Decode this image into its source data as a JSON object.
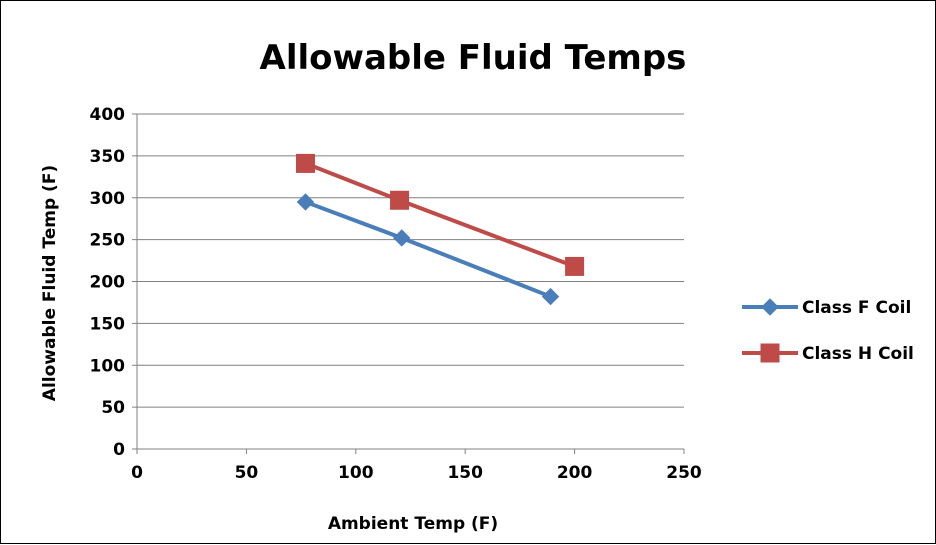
{
  "chart_data": {
    "type": "line",
    "title": "Allowable Fluid Temps",
    "xlabel": "Ambient Temp (F)",
    "ylabel": "Allowable Fluid Temp (F)",
    "xlim": [
      0,
      250
    ],
    "ylim": [
      0,
      400
    ],
    "x_ticks": [
      "0",
      "50",
      "100",
      "150",
      "200",
      "250"
    ],
    "y_ticks": [
      "0",
      "50",
      "100",
      "150",
      "200",
      "250",
      "300",
      "350",
      "400"
    ],
    "grid": "horizontal",
    "legend": "right",
    "series": [
      {
        "name": "Class F Coil",
        "color": "#4a7ebb",
        "marker": "diamond",
        "points": [
          [
            77,
            295
          ],
          [
            121,
            252
          ],
          [
            189,
            182
          ]
        ]
      },
      {
        "name": "Class H Coil",
        "color": "#be4b48",
        "marker": "square",
        "points": [
          [
            77,
            341
          ],
          [
            120,
            297
          ],
          [
            200,
            218
          ]
        ]
      }
    ]
  }
}
